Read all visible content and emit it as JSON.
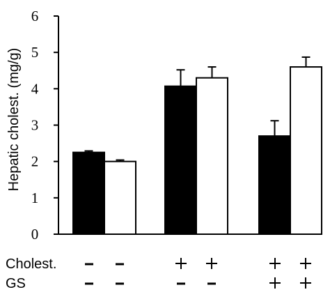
{
  "chart_data": {
    "type": "bar",
    "title": "",
    "xlabel": "",
    "ylabel": "Hepatic cholest. (mg/g)",
    "ylim": [
      0,
      6
    ],
    "yticks": [
      0,
      1,
      2,
      3,
      4,
      5,
      6
    ],
    "grid": false,
    "legend": "none",
    "groups": [
      {
        "bars": [
          {
            "value": 2.25,
            "error": 0.04,
            "fill": "#000000"
          },
          {
            "value": 2.0,
            "error": 0.04,
            "fill": "#ffffff"
          }
        ],
        "treatments": [
          [
            "-",
            "-"
          ],
          [
            "-",
            "-"
          ]
        ]
      },
      {
        "bars": [
          {
            "value": 4.07,
            "error": 0.45,
            "fill": "#000000"
          },
          {
            "value": 4.3,
            "error": 0.3,
            "fill": "#ffffff"
          }
        ],
        "treatments": [
          [
            "+",
            "+"
          ],
          [
            "-",
            "-"
          ]
        ]
      },
      {
        "bars": [
          {
            "value": 2.7,
            "error": 0.42,
            "fill": "#000000"
          },
          {
            "value": 4.6,
            "error": 0.27,
            "fill": "#ffffff"
          }
        ],
        "treatments": [
          [
            "+",
            "+"
          ],
          [
            "+",
            "+"
          ]
        ]
      }
    ],
    "treatment_rows": [
      "Cholest.",
      "GS"
    ]
  },
  "colors": {
    "solid_bar": "#000000",
    "open_bar": "#ffffff",
    "axis": "#000000"
  }
}
